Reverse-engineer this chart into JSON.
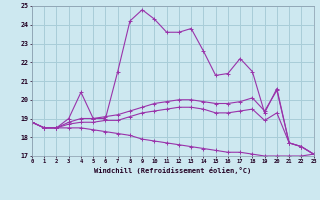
{
  "xlabel": "Windchill (Refroidissement éolien,°C)",
  "bg_color": "#cde8f0",
  "grid_color": "#a8cdd8",
  "line_color": "#9933aa",
  "ylim": [
    17,
    25
  ],
  "xlim": [
    0,
    23
  ],
  "yticks": [
    17,
    18,
    19,
    20,
    21,
    22,
    23,
    24,
    25
  ],
  "xticks": [
    0,
    1,
    2,
    3,
    4,
    5,
    6,
    7,
    8,
    9,
    10,
    11,
    12,
    13,
    14,
    15,
    16,
    17,
    18,
    19,
    20,
    21,
    22,
    23
  ],
  "series": [
    [
      18.8,
      18.5,
      18.5,
      19.0,
      20.4,
      19.0,
      19.0,
      21.5,
      24.2,
      24.8,
      24.3,
      23.6,
      23.6,
      23.8,
      22.6,
      21.3,
      21.4,
      22.2,
      21.5,
      19.3,
      20.6,
      17.7,
      17.5,
      17.1
    ],
    [
      18.8,
      18.5,
      18.5,
      18.8,
      19.0,
      19.0,
      19.1,
      19.2,
      19.4,
      19.6,
      19.8,
      19.9,
      20.0,
      20.0,
      19.9,
      19.8,
      19.8,
      19.9,
      20.1,
      19.4,
      20.5,
      17.7,
      17.5,
      17.1
    ],
    [
      18.8,
      18.5,
      18.5,
      18.7,
      18.8,
      18.8,
      18.9,
      18.9,
      19.1,
      19.3,
      19.4,
      19.5,
      19.6,
      19.6,
      19.5,
      19.3,
      19.3,
      19.4,
      19.5,
      18.9,
      19.3,
      17.7,
      17.5,
      17.1
    ],
    [
      18.8,
      18.5,
      18.5,
      18.5,
      18.5,
      18.4,
      18.3,
      18.2,
      18.1,
      17.9,
      17.8,
      17.7,
      17.6,
      17.5,
      17.4,
      17.3,
      17.2,
      17.2,
      17.1,
      17.0,
      17.0,
      17.0,
      17.0,
      17.1
    ]
  ]
}
